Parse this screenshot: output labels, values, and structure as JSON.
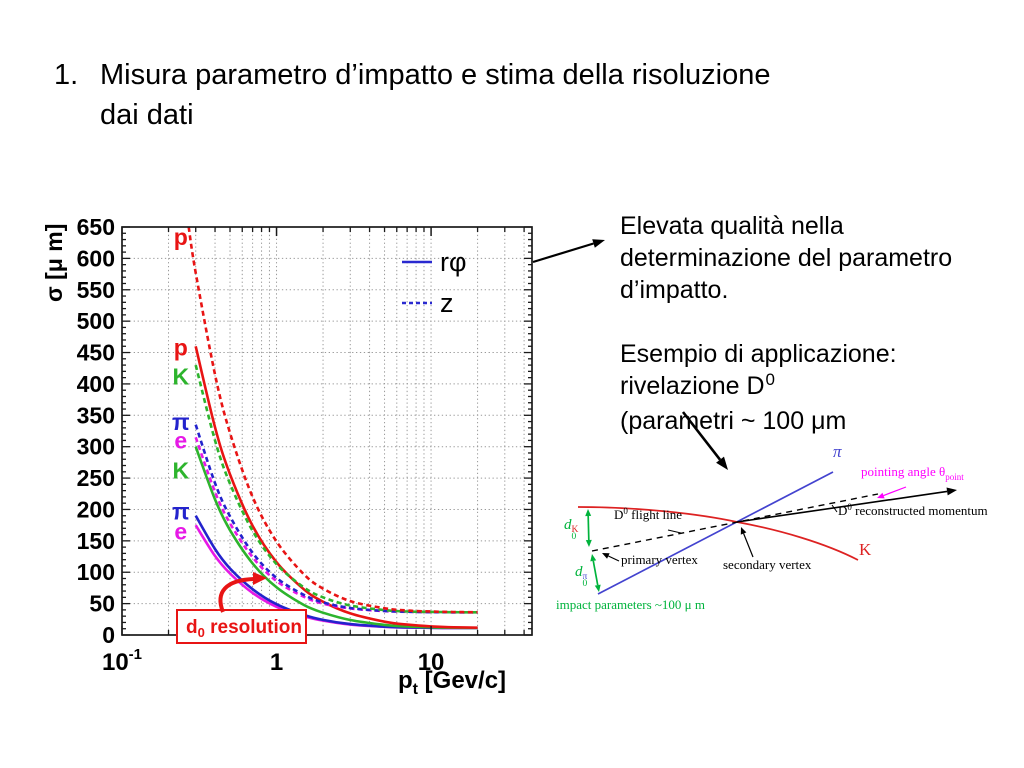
{
  "slide": {
    "title_number": "1.",
    "title_line1": "Misura parametro d’impatto e stima della risoluzione",
    "title_line2": "dai dati"
  },
  "right_text": {
    "p1_line1": "Elevata qualità nella",
    "p1_line2": "determinazione del parametro",
    "p1_line3": "d’impatto.",
    "p2_line1": "Esempio di applicazione:",
    "p2_line2_pre": "rivelazione D",
    "p2_line2_sup": "0",
    "p2_line3": "(parametri ~ 100 μm"
  },
  "chart_data": {
    "type": "line",
    "title": "",
    "ylabel": "σ [μ m]",
    "xlabel_pre": "p",
    "xlabel_sub": "t",
    "xlabel_post": " [Gev/c]",
    "x_scale": "log",
    "xlim": [
      0.1,
      45
    ],
    "ylim": [
      0,
      650
    ],
    "y_ticks": [
      0,
      50,
      100,
      150,
      200,
      250,
      300,
      350,
      400,
      450,
      500,
      550,
      600,
      650
    ],
    "x_ticks": [
      {
        "pt": 0.1,
        "base": "10",
        "exp": "-1"
      },
      {
        "pt": 1,
        "base": "1",
        "exp": ""
      },
      {
        "pt": 10,
        "base": "10",
        "exp": ""
      }
    ],
    "grid": "dotted",
    "legend": [
      {
        "label": "rφ",
        "style": "solid"
      },
      {
        "label": "z",
        "style": "dashed"
      }
    ],
    "series": [
      {
        "name": "e rphi",
        "particle": "e",
        "component": "rphi",
        "style": "solid",
        "color": "magenta",
        "points": [
          [
            0.3,
            175
          ],
          [
            0.4,
            126
          ],
          [
            0.5,
            98
          ],
          [
            0.7,
            67
          ],
          [
            1,
            45
          ],
          [
            1.5,
            30
          ],
          [
            2,
            23
          ],
          [
            3,
            16.6
          ],
          [
            5,
            13
          ],
          [
            7,
            11.9
          ],
          [
            10,
            11.4
          ],
          [
            14,
            11.2
          ],
          [
            20,
            11.1
          ]
        ]
      },
      {
        "name": "pi rphi",
        "particle": "π",
        "component": "rphi",
        "style": "solid",
        "color": "blue",
        "points": [
          [
            0.3,
            190
          ],
          [
            0.4,
            137
          ],
          [
            0.5,
            106
          ],
          [
            0.7,
            73
          ],
          [
            1,
            49
          ],
          [
            1.5,
            32
          ],
          [
            2,
            24
          ],
          [
            3,
            17.4
          ],
          [
            5,
            13.3
          ],
          [
            7,
            12.1
          ],
          [
            10,
            11.5
          ],
          [
            14,
            11.2
          ],
          [
            20,
            11.1
          ]
        ]
      },
      {
        "name": "K rphi",
        "particle": "K",
        "component": "rphi",
        "style": "solid",
        "color": "green",
        "points": [
          [
            0.3,
            300
          ],
          [
            0.4,
            216
          ],
          [
            0.5,
            167
          ],
          [
            0.7,
            114
          ],
          [
            1,
            76
          ],
          [
            1.5,
            48
          ],
          [
            2,
            35.6
          ],
          [
            3,
            23.9
          ],
          [
            5,
            16.1
          ],
          [
            7,
            13.6
          ],
          [
            10,
            12.2
          ],
          [
            14,
            11.6
          ],
          [
            20,
            11.3
          ]
        ]
      },
      {
        "name": "p rphi",
        "particle": "p",
        "component": "rphi",
        "style": "solid",
        "color": "red",
        "points": [
          [
            0.3,
            460
          ],
          [
            0.4,
            331
          ],
          [
            0.5,
            256
          ],
          [
            0.7,
            174
          ],
          [
            1,
            116
          ],
          [
            1.5,
            73
          ],
          [
            2,
            53
          ],
          [
            3,
            34.4
          ],
          [
            5,
            21.2
          ],
          [
            7,
            16.5
          ],
          [
            10,
            13.7
          ],
          [
            14,
            12.3
          ],
          [
            20,
            11.6
          ]
        ]
      },
      {
        "name": "e z",
        "particle": "e",
        "component": "z",
        "style": "dashed",
        "color": "magenta",
        "points": [
          [
            0.3,
            315
          ],
          [
            0.4,
            228
          ],
          [
            0.5,
            178
          ],
          [
            0.7,
            124
          ],
          [
            1,
            86
          ],
          [
            1.5,
            61
          ],
          [
            2,
            50
          ],
          [
            3,
            42.3
          ],
          [
            5,
            38
          ],
          [
            7,
            37
          ],
          [
            10,
            36.4
          ],
          [
            14,
            36.2
          ],
          [
            20,
            36.1
          ]
        ]
      },
      {
        "name": "pi z",
        "particle": "π",
        "component": "z",
        "style": "dashed",
        "color": "blue",
        "points": [
          [
            0.3,
            335
          ],
          [
            0.4,
            242
          ],
          [
            0.5,
            189
          ],
          [
            0.7,
            131
          ],
          [
            1,
            91
          ],
          [
            1.5,
            64
          ],
          [
            2,
            52
          ],
          [
            3,
            43
          ],
          [
            5,
            38.3
          ],
          [
            7,
            37.1
          ],
          [
            10,
            36.5
          ],
          [
            14,
            36.2
          ],
          [
            20,
            36.1
          ]
        ]
      },
      {
        "name": "K z",
        "particle": "K",
        "component": "z",
        "style": "dashed",
        "color": "green",
        "points": [
          [
            0.3,
            430
          ],
          [
            0.4,
            310
          ],
          [
            0.5,
            241
          ],
          [
            0.7,
            166
          ],
          [
            1,
            113
          ],
          [
            1.5,
            76
          ],
          [
            2,
            60
          ],
          [
            3,
            47
          ],
          [
            5,
            39.7
          ],
          [
            7,
            37.5
          ],
          [
            10,
            36.8
          ],
          [
            14,
            36.3
          ],
          [
            20,
            36.2
          ]
        ]
      },
      {
        "name": "p z",
        "particle": "p",
        "component": "z",
        "style": "dashed",
        "color": "red",
        "points": [
          [
            0.27,
            650
          ],
          [
            0.3,
            577
          ],
          [
            0.4,
            415
          ],
          [
            0.5,
            322
          ],
          [
            0.7,
            220
          ],
          [
            1,
            149
          ],
          [
            1.5,
            97
          ],
          [
            2,
            74
          ],
          [
            3,
            54
          ],
          [
            5,
            42.6
          ],
          [
            7,
            39
          ],
          [
            10,
            37.4
          ],
          [
            14,
            36.6
          ],
          [
            20,
            36.3
          ]
        ]
      }
    ],
    "curve_labels": [
      {
        "text": "p",
        "color": "red",
        "pt": 0.24,
        "sigma": 634
      },
      {
        "text": "p",
        "color": "red",
        "pt": 0.24,
        "sigma": 458
      },
      {
        "text": "K",
        "color": "green",
        "pt": 0.24,
        "sigma": 412
      },
      {
        "text": "π",
        "color": "blue",
        "pt": 0.24,
        "sigma": 339
      },
      {
        "text": "e",
        "color": "magenta",
        "pt": 0.24,
        "sigma": 310
      },
      {
        "text": "K",
        "color": "green",
        "pt": 0.24,
        "sigma": 262
      },
      {
        "text": "π",
        "color": "blue",
        "pt": 0.24,
        "sigma": 197
      },
      {
        "text": "e",
        "color": "magenta",
        "pt": 0.24,
        "sigma": 165
      }
    ],
    "annotation": {
      "pre": "d",
      "sub": "0",
      "post": " resolution"
    }
  },
  "diagram": {
    "pi_label": "π",
    "k_label": "K",
    "pointing_pre": "pointing angle θ",
    "pointing_sub": "point",
    "momentum_pre": "D",
    "momentum_sup": "0",
    "momentum_post": " reconstructed momentum",
    "flight_pre": "D",
    "flight_sup": "0",
    "flight_post": " flight line",
    "primary_vertex": "primary vertex",
    "secondary_vertex": "secondary vertex",
    "d0k_base": "d",
    "d0k_sub": "0",
    "d0k_sup": "K",
    "d0pi_base": "d",
    "d0pi_sub": "0",
    "d0pi_sup": "π",
    "impact_label": "impact parameters ~100 μ m"
  },
  "colors": {
    "red": "#e81414",
    "green": "#2db42d",
    "blue": "#2323cc",
    "magenta": "#e619e6",
    "legend_blue": "#2a2ad0",
    "grid": "#999999",
    "axis": "#1a1a1a",
    "text": "#000000",
    "diagram_red": "#dd2222",
    "diagram_blue": "#4343cf",
    "diagram_green": "#00b33c",
    "diagram_magenta": "#ff00ff",
    "diagram_black": "#000000"
  }
}
